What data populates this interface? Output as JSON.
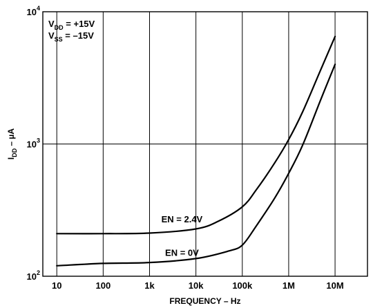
{
  "chart_data": {
    "type": "line",
    "xscale": "log",
    "yscale": "log",
    "xlim": [
      5,
      50000000
    ],
    "ylim": [
      100,
      10000
    ],
    "xlabel": "FREQUENCY – Hz",
    "ylabel": {
      "main": "I",
      "sub": "DD",
      "rest": " – µA"
    },
    "x_ticks": [
      {
        "value": 10,
        "label": "10"
      },
      {
        "value": 100,
        "label": "100"
      },
      {
        "value": 1000,
        "label": "1k"
      },
      {
        "value": 10000,
        "label": "10k"
      },
      {
        "value": 100000,
        "label": "100k"
      },
      {
        "value": 1000000,
        "label": "1M"
      },
      {
        "value": 10000000,
        "label": "10M"
      }
    ],
    "y_ticks": [
      {
        "value": 100,
        "base": "10",
        "exp": "2"
      },
      {
        "value": 1000,
        "base": "10",
        "exp": "3"
      },
      {
        "value": 10000,
        "base": "10",
        "exp": "4"
      }
    ],
    "grid": true,
    "conditions": [
      {
        "main": "V",
        "sub": "DD",
        "rest": " = +15V"
      },
      {
        "main": "V",
        "sub": "SS",
        "rest": " = –15V"
      }
    ],
    "series": [
      {
        "name": "EN = 2.4V",
        "x": [
          10,
          100,
          1000,
          10000,
          30000,
          100000,
          200000,
          500000,
          1000000,
          2000000,
          5000000,
          10000000
        ],
        "y": [
          210,
          210,
          212,
          228,
          260,
          335,
          450,
          720,
          1080,
          1750,
          3700,
          6500
        ]
      },
      {
        "name": "EN = 0V",
        "x": [
          10,
          100,
          1000,
          10000,
          50000,
          100000,
          200000,
          500000,
          1000000,
          2000000,
          5000000,
          10000000
        ],
        "y": [
          120,
          125,
          127,
          136,
          155,
          172,
          240,
          390,
          600,
          980,
          2200,
          4000
        ]
      }
    ]
  }
}
